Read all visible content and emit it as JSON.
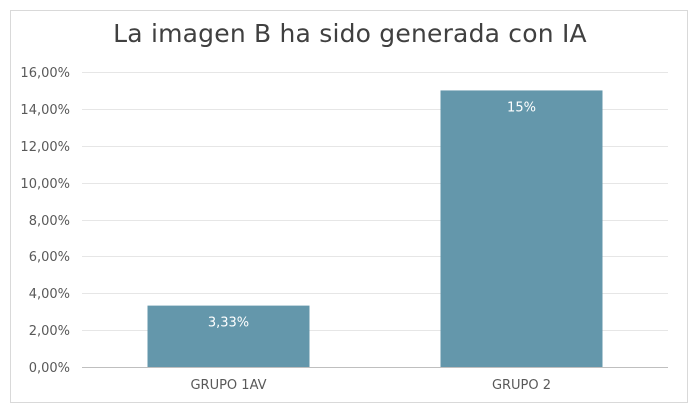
{
  "chart_data": {
    "type": "bar",
    "title": "La imagen B ha sido generada con IA",
    "categories": [
      "GRUPO 1AV",
      "GRUPO 2"
    ],
    "values": [
      3.33,
      15
    ],
    "data_labels": [
      "3,33%",
      "15%"
    ],
    "ylim": [
      0,
      16
    ],
    "yticks": [
      0,
      2,
      4,
      6,
      8,
      10,
      12,
      14,
      16
    ],
    "ytick_labels": [
      "0,00%",
      "2,00%",
      "4,00%",
      "6,00%",
      "8,00%",
      "10,00%",
      "12,00%",
      "14,00%",
      "16,00%"
    ],
    "xlabel": "",
    "ylabel": "",
    "grid": true,
    "legend": "none",
    "bar_color": "#6497ab",
    "grid_color": "#e6e6e6",
    "axis_color": "#bfbfbf"
  }
}
